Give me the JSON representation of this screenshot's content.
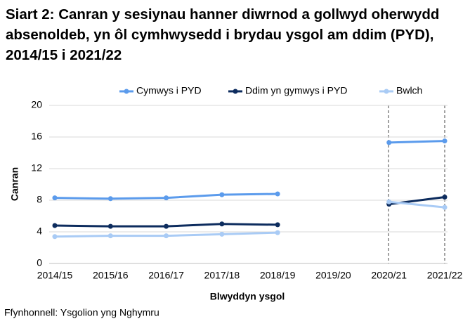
{
  "chart_data": {
    "type": "line",
    "title": "Siart 2: Canran y sesiynau hanner diwrnod a gollwyd oherwydd absenoldeb, yn ôl cymhwysedd i brydau ysgol am ddim (PYD), 2014/15 i 2021/22",
    "xlabel": "Blwyddyn ysgol",
    "ylabel": "Canran",
    "source": "Ffynhonnell: Ysgolion yng Nghymru",
    "categories": [
      "2014/15",
      "2015/16",
      "2016/17",
      "2017/18",
      "2018/19",
      "2019/20",
      "2020/21",
      "2021/22"
    ],
    "series": [
      {
        "name": "Cymwys i PYD",
        "color": "#5b9bec",
        "values": [
          8.3,
          8.2,
          8.3,
          8.7,
          8.8,
          null,
          15.3,
          15.5
        ]
      },
      {
        "name": "Ddim yn gymwys i PYD",
        "color": "#0d2c5e",
        "values": [
          4.8,
          4.7,
          4.7,
          5.0,
          4.9,
          null,
          7.5,
          8.4
        ]
      },
      {
        "name": "Bwlch",
        "color": "#a9cbf5",
        "values": [
          3.4,
          3.5,
          3.5,
          3.7,
          3.9,
          null,
          7.8,
          7.1
        ]
      }
    ],
    "ylim": [
      0,
      20
    ],
    "yticks": [
      0,
      4,
      8,
      12,
      16,
      20
    ],
    "grid": true,
    "legend": "top"
  }
}
